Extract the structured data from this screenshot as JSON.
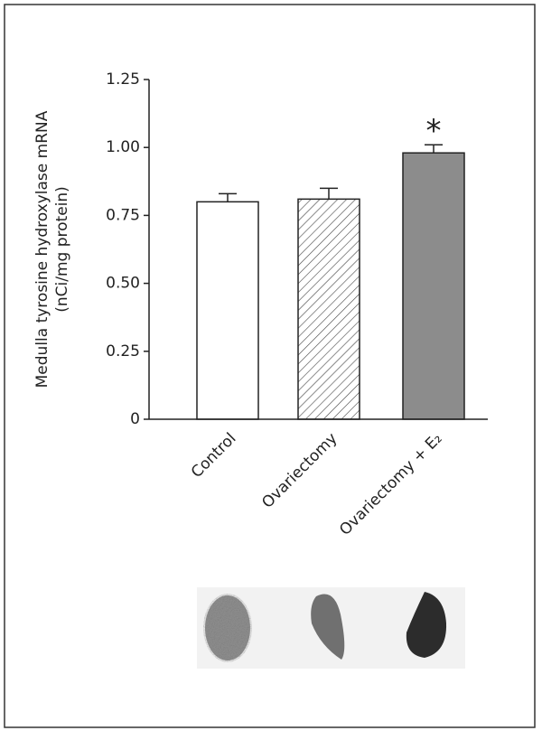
{
  "chart_data": {
    "type": "bar",
    "ylabel": [
      "Medulla tyrosine hydroxylase mRNA",
      "(nCi/mg protein)"
    ],
    "categories": [
      "Control",
      "Ovariectomy",
      "Ovariectomy + E₂"
    ],
    "values": [
      0.8,
      0.81,
      0.98
    ],
    "errors": [
      0.03,
      0.04,
      0.03
    ],
    "colors": [
      "#ffffff",
      "#ffffff",
      "#8c8c8c"
    ],
    "hatches": [
      "none",
      "diagonal",
      "none"
    ],
    "annotations": [
      {
        "text": "*",
        "x": "Ovariectomy + E₂"
      }
    ],
    "ylim": [
      0,
      1.25
    ],
    "yticks": [
      0,
      0.25,
      {
        "value": 0.5,
        "label": "0.50"
      },
      0.75,
      {
        "value": 1.0,
        "label": "1.00"
      },
      1.25
    ]
  }
}
